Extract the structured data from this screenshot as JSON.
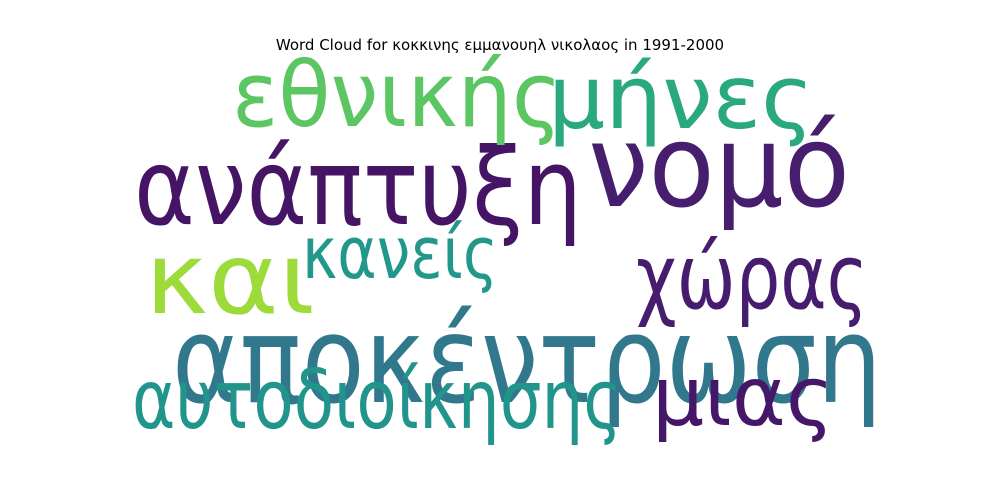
{
  "chart_data": {
    "type": "wordcloud",
    "title": "Word Cloud for κοκκινης εμμανουηλ νικολαος in 1991-2000",
    "words": [
      {
        "text": "αποκέντρωση",
        "weight": 1.0,
        "color": "#31788c"
      },
      {
        "text": "νομό",
        "weight": 0.93,
        "color": "#471d6e"
      },
      {
        "text": "ανάπτυξη",
        "weight": 0.82,
        "color": "#461464"
      },
      {
        "text": "και",
        "weight": 0.74,
        "color": "#9ddb3a"
      },
      {
        "text": "χώρας",
        "weight": 0.62,
        "color": "#461c6e"
      },
      {
        "text": "εθνικής",
        "weight": 0.62,
        "color": "#5cc663"
      },
      {
        "text": "μήνες",
        "weight": 0.6,
        "color": "#2aa97f"
      },
      {
        "text": "αυτοδιοίκησης",
        "weight": 0.52,
        "color": "#21948c"
      },
      {
        "text": "μιας",
        "weight": 0.52,
        "color": "#451768"
      },
      {
        "text": "κανείς",
        "weight": 0.4,
        "color": "#22988b"
      }
    ]
  }
}
